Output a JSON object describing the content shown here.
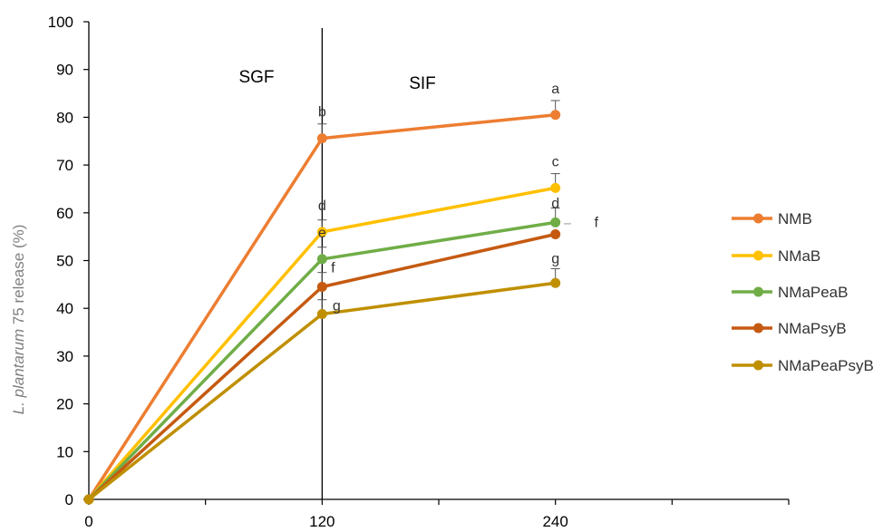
{
  "chart_data": {
    "type": "line",
    "title": "",
    "xlabel": "",
    "ylabel": {
      "italic": "L. plantarum",
      "rest": " 75  release (%)"
    },
    "x": [
      0,
      120,
      240
    ],
    "xticks": [
      "0",
      "120",
      "240"
    ],
    "xlim": [
      0,
      360
    ],
    "ylim": [
      0,
      100
    ],
    "yticks": [
      "0",
      "10",
      "20",
      "30",
      "40",
      "50",
      "60",
      "70",
      "80",
      "90",
      "100"
    ],
    "grid": false,
    "legend_position": "right",
    "divider_x": 120,
    "regions": [
      {
        "label": "SGF"
      },
      {
        "label": "SIF"
      }
    ],
    "series": [
      {
        "name": "NMB",
        "color": "#ED7D31",
        "values": [
          0,
          75.6,
          80.5
        ],
        "errors": [
          0,
          3.0,
          3.0
        ],
        "letters": [
          "",
          "b",
          "a"
        ]
      },
      {
        "name": "NMaB",
        "color": "#FFC000",
        "values": [
          0,
          56.0,
          65.2
        ],
        "errors": [
          0,
          2.5,
          3.0
        ],
        "letters": [
          "",
          "d",
          "c"
        ]
      },
      {
        "name": "NMaPeaB",
        "color": "#70AD47",
        "values": [
          0,
          50.3,
          58.0
        ],
        "errors": [
          0,
          2.5,
          3.0
        ],
        "letters": [
          "",
          "e",
          "d"
        ]
      },
      {
        "name": "NMaPsyB",
        "color": "#C55A11",
        "values": [
          0,
          44.5,
          55.5
        ],
        "errors": [
          0,
          3.0,
          0
        ],
        "letters": [
          "",
          "f",
          "f"
        ]
      },
      {
        "name": "NMaPeaPsyB",
        "color": "#BF8F00",
        "values": [
          0,
          38.8,
          45.3
        ],
        "errors": [
          0,
          3.0,
          3.0
        ],
        "letters": [
          "",
          "g",
          "g"
        ]
      }
    ]
  }
}
